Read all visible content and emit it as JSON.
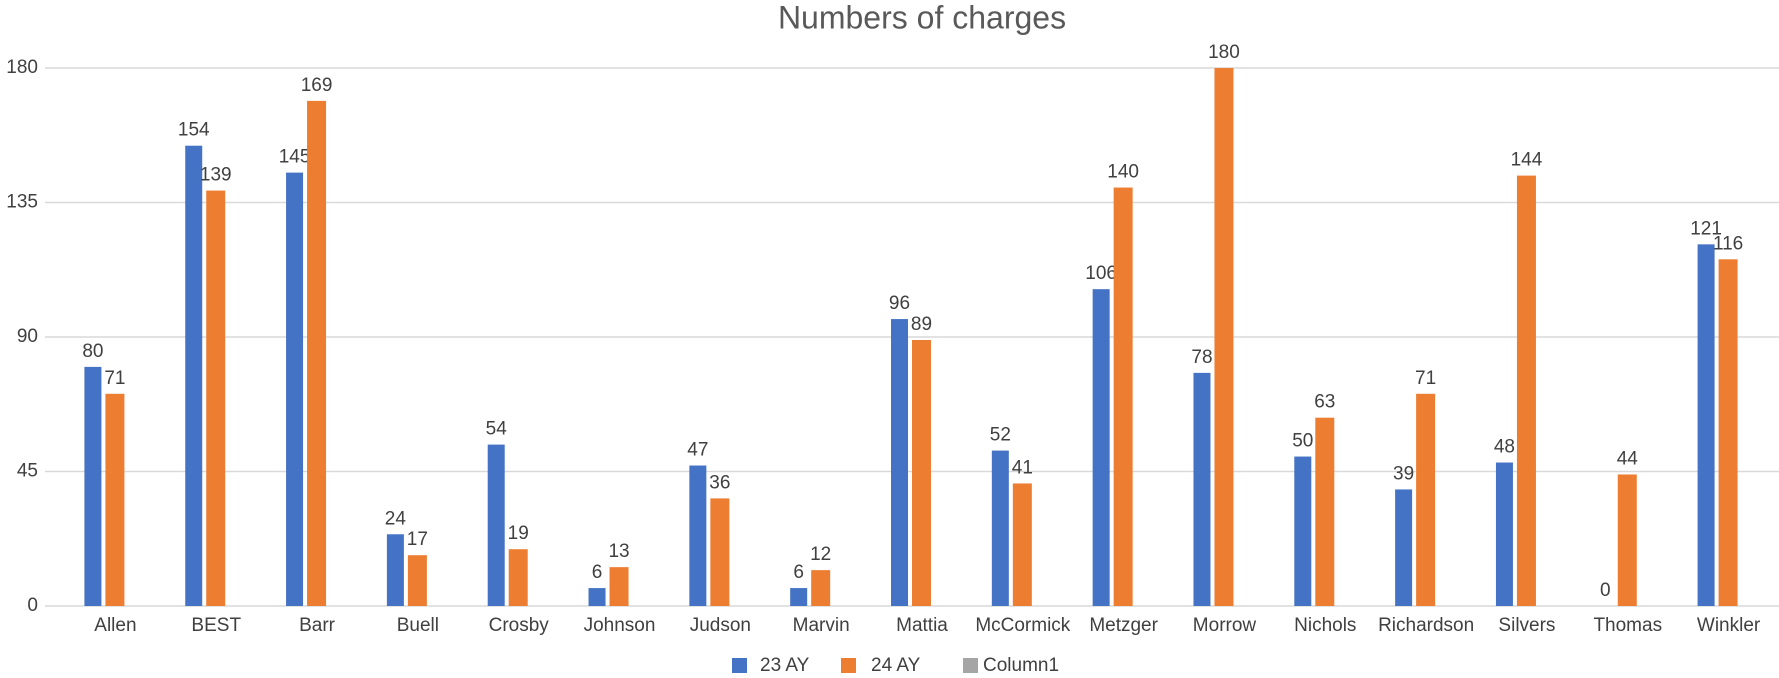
{
  "chart_data": {
    "type": "bar",
    "title": "Numbers of charges",
    "categories": [
      "Allen",
      "BEST",
      "Barr",
      "Buell",
      "Crosby",
      "Johnson",
      "Judson",
      "Marvin",
      "Mattia",
      "McCormick",
      "Metzger",
      "Morrow",
      "Nichols",
      "Richardson",
      "Silvers",
      "Thomas",
      "Winkler"
    ],
    "series": [
      {
        "name": "23 AY",
        "color": "#4472c4",
        "values": [
          80,
          154,
          145,
          24,
          54,
          6,
          47,
          6,
          96,
          52,
          106,
          78,
          50,
          39,
          48,
          0,
          121
        ]
      },
      {
        "name": "24 AY",
        "color": "#ed7d31",
        "values": [
          71,
          139,
          169,
          17,
          19,
          13,
          36,
          12,
          89,
          41,
          140,
          180,
          63,
          71,
          144,
          44,
          116
        ]
      },
      {
        "name": "Column1",
        "color": "#a5a5a5",
        "values": [
          null,
          null,
          null,
          null,
          null,
          null,
          null,
          null,
          null,
          null,
          null,
          null,
          null,
          null,
          null,
          null,
          null
        ]
      }
    ],
    "ylim": [
      0,
      180
    ],
    "yticks": [
      0,
      45,
      90,
      135,
      180
    ],
    "grid": true,
    "legend": "bottom"
  }
}
